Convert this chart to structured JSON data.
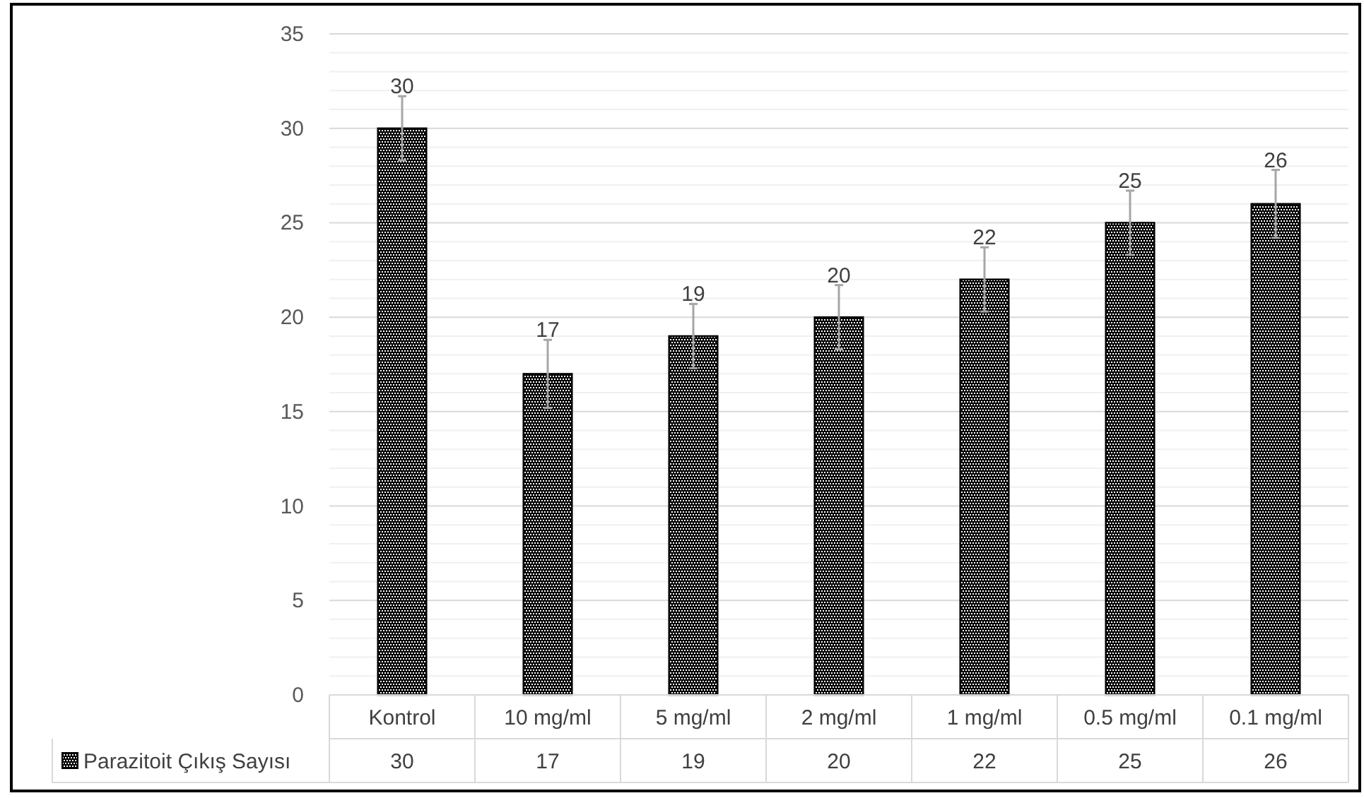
{
  "chart_data": {
    "type": "bar",
    "categories": [
      "Kontrol",
      "10 mg/ml",
      "5 mg/ml",
      "2 mg/ml",
      "1 mg/ml",
      "0.5 mg/ml",
      "0.1 mg/ml"
    ],
    "series": [
      {
        "name": "Parazitoit Çıkış Sayısı",
        "color": "#000000",
        "values": [
          30,
          17,
          19,
          20,
          22,
          25,
          26
        ],
        "errors": [
          1.7,
          1.8,
          1.7,
          1.7,
          1.7,
          1.7,
          1.8
        ]
      }
    ],
    "ylim": [
      0,
      35
    ],
    "yticks": [
      0,
      {
        "value": 1,
        "label": null
      },
      {
        "value": 2,
        "label": null
      },
      {
        "value": 3,
        "label": null
      },
      {
        "value": 4,
        "label": null
      },
      5,
      {
        "value": 6,
        "label": null
      },
      {
        "value": 7,
        "label": null
      },
      {
        "value": 8,
        "label": null
      },
      {
        "value": 9,
        "label": null
      },
      10,
      {
        "value": 11,
        "label": null
      },
      {
        "value": 12,
        "label": null
      },
      {
        "value": 13,
        "label": null
      },
      {
        "value": 14,
        "label": null
      },
      15,
      {
        "value": 16,
        "label": null
      },
      {
        "value": 17,
        "label": null
      },
      {
        "value": 18,
        "label": null
      },
      {
        "value": 19,
        "label": null
      },
      20,
      {
        "value": 21,
        "label": null
      },
      {
        "value": 22,
        "label": null
      },
      {
        "value": 23,
        "label": null
      },
      {
        "value": 24,
        "label": null
      },
      25,
      {
        "value": 26,
        "label": null
      },
      {
        "value": 27,
        "label": null
      },
      {
        "value": 28,
        "label": null
      },
      {
        "value": 29,
        "label": null
      },
      30,
      {
        "value": 31,
        "label": null
      },
      {
        "value": 32,
        "label": null
      },
      {
        "value": 33,
        "label": null
      },
      {
        "value": 34,
        "label": null
      },
      35
    ],
    "annotations": [
      "30",
      "17",
      "19",
      "20",
      "22",
      "25",
      "26"
    ],
    "grid": "y",
    "legend": "bottom",
    "data_labels": true
  }
}
